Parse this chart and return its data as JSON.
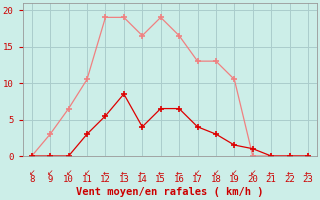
{
  "x_labels": [
    "8",
    "9",
    "10",
    "11",
    "12",
    "13",
    "14",
    "15",
    "16",
    "17",
    "18",
    "19",
    "20",
    "21",
    "22",
    "23"
  ],
  "x_values": [
    8,
    9,
    10,
    11,
    12,
    13,
    14,
    15,
    16,
    17,
    18,
    19,
    20,
    21,
    22,
    23
  ],
  "rafales_y": [
    0,
    3,
    6.5,
    10.5,
    19,
    19,
    16.5,
    19,
    16.5,
    13,
    13,
    10.5,
    0,
    0,
    0,
    0
  ],
  "moyen_y": [
    0,
    0,
    0,
    3,
    5.5,
    8.5,
    4,
    6.5,
    6.5,
    4,
    3,
    1.5,
    1,
    0,
    0,
    0
  ],
  "rafales_color": "#f08080",
  "moyen_color": "#dd0000",
  "background_color": "#cceee8",
  "grid_color": "#aacccc",
  "xlabel": "Vent moyen/en rafales ( km/h )",
  "ylabel_ticks": [
    0,
    5,
    10,
    15,
    20
  ],
  "ylim": [
    0,
    21
  ],
  "xlim": [
    7.5,
    23.5
  ],
  "xlabel_color": "#cc0000",
  "tick_color": "#cc0000",
  "tick_fontsize": 6.5,
  "xlabel_fontsize": 7.5
}
